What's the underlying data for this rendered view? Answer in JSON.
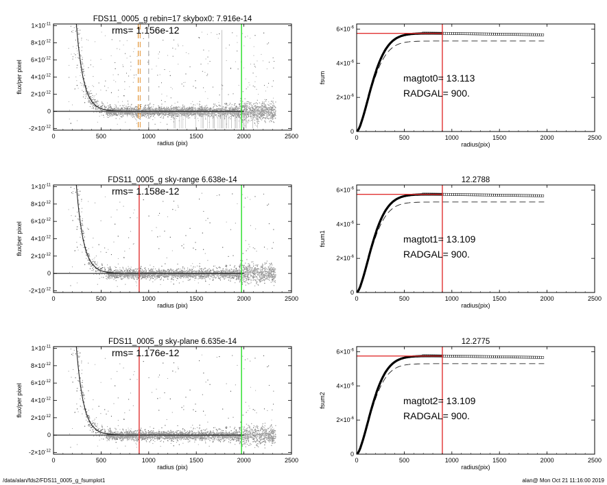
{
  "footer": {
    "path": "/data/alan/fds2/FDS11_0005_g_fsumplot1",
    "stamp": "alan@  Mon Oct 21 11:16:00 2019"
  },
  "colors": {
    "scatter": "#a0a0a0",
    "sky_marker": "#e03030",
    "radgal_marker": "#e03030",
    "edge_marker": "#22dd22",
    "aperture_marker": "#e08820"
  },
  "chart_data": [
    {
      "type": "scatter",
      "title": "FDS11_0005_g rebin=17    skybox0:  7.916e-14",
      "annotation": "rms= 1.156e-12",
      "xlabel": "radius (pix)",
      "ylabel": "flux/per pixel",
      "xlim": [
        0,
        2500
      ],
      "ylim": [
        -2.2e-12,
        1.02e-11
      ],
      "xticks": [
        0,
        500,
        1000,
        1500,
        2000,
        2500
      ],
      "yticks": [
        {
          "value": 1e-11,
          "label": "1×10",
          "exp": "-11"
        },
        {
          "value": 8e-12,
          "label": "8×10",
          "exp": "-12"
        },
        {
          "value": 6e-12,
          "label": "6×10",
          "exp": "-12"
        },
        {
          "value": 4e-12,
          "label": "4×10",
          "exp": "-12"
        },
        {
          "value": 2e-12,
          "label": "2×10",
          "exp": "-12"
        },
        {
          "value": 0,
          "label": "0",
          "exp": ""
        },
        {
          "value": -2e-12,
          "label": "-2×10",
          "exp": "-12"
        }
      ],
      "profile_scale": 2.5e-10,
      "profile_length": 75,
      "vlines": [
        {
          "x": 890,
          "color": "aperture",
          "dash": true
        },
        {
          "x": 910,
          "color": "aperture",
          "dash": true
        },
        {
          "x": 1000,
          "color": "gray",
          "dash": true
        },
        {
          "x": 1975,
          "color": "edge",
          "dash": false
        }
      ],
      "mask_spikes": true
    },
    {
      "type": "line",
      "title": "",
      "annotations": [
        "magtot0=  13.113",
        "RADGAL=    900."
      ],
      "xlabel": "radius(pix)",
      "ylabel": "fsum",
      "xlim": [
        0,
        2500
      ],
      "ylim": [
        0,
        6.3e-06
      ],
      "xticks": [
        0,
        500,
        1000,
        1500,
        2000,
        2500
      ],
      "yticks": [
        {
          "value": 0,
          "label": "0",
          "exp": ""
        },
        {
          "value": 2e-06,
          "label": "2×10",
          "exp": "-6"
        },
        {
          "value": 4e-06,
          "label": "4×10",
          "exp": "-6"
        },
        {
          "value": 6e-06,
          "label": "6×10",
          "exp": "-6"
        }
      ],
      "asymptote": 5.75e-06,
      "dashed_asymptote": 5.3e-06,
      "radgal": 900,
      "xmax_data": 1975
    },
    {
      "type": "scatter",
      "title": "FDS11_0005_g sky-range  6.638e-14",
      "annotation": "rms= 1.158e-12",
      "xlabel": "radius (pix)",
      "ylabel": "flux/per pixel",
      "xlim": [
        0,
        2500
      ],
      "ylim": [
        -2.2e-12,
        1.02e-11
      ],
      "xticks": [
        0,
        500,
        1000,
        1500,
        2000,
        2500
      ],
      "yticks": [
        {
          "value": 1e-11,
          "label": "1×10",
          "exp": "-11"
        },
        {
          "value": 8e-12,
          "label": "8×10",
          "exp": "-12"
        },
        {
          "value": 6e-12,
          "label": "6×10",
          "exp": "-12"
        },
        {
          "value": 4e-12,
          "label": "4×10",
          "exp": "-12"
        },
        {
          "value": 2e-12,
          "label": "2×10",
          "exp": "-12"
        },
        {
          "value": 0,
          "label": "0",
          "exp": ""
        },
        {
          "value": -2e-12,
          "label": "-2×10",
          "exp": "-12"
        }
      ],
      "profile_scale": 2.5e-10,
      "profile_length": 75,
      "vlines": [
        {
          "x": 900,
          "color": "sky",
          "dash": false
        },
        {
          "x": 1975,
          "color": "edge",
          "dash": false
        }
      ],
      "mask_spikes": false
    },
    {
      "type": "line",
      "title": "12.2788",
      "annotations": [
        "magtot1=  13.109",
        "RADGAL=    900."
      ],
      "xlabel": "radius(pix)",
      "ylabel": "fsum1",
      "xlim": [
        0,
        2500
      ],
      "ylim": [
        0,
        6.3e-06
      ],
      "xticks": [
        0,
        500,
        1000,
        1500,
        2000,
        2500
      ],
      "yticks": [
        {
          "value": 0,
          "label": "0",
          "exp": ""
        },
        {
          "value": 2e-06,
          "label": "2×10",
          "exp": "-6"
        },
        {
          "value": 4e-06,
          "label": "4×10",
          "exp": "-6"
        },
        {
          "value": 6e-06,
          "label": "6×10",
          "exp": "-6"
        }
      ],
      "asymptote": 5.75e-06,
      "dashed_asymptote": 5.3e-06,
      "radgal": 900,
      "xmax_data": 1975
    },
    {
      "type": "scatter",
      "title": "FDS11_0005_g sky-plane  6.635e-14",
      "annotation": "rms= 1.176e-12",
      "xlabel": "radius (pix)",
      "ylabel": "flux/per pixel",
      "xlim": [
        0,
        2500
      ],
      "ylim": [
        -2.2e-12,
        1.02e-11
      ],
      "xticks": [
        0,
        500,
        1000,
        1500,
        2000,
        2500
      ],
      "yticks": [
        {
          "value": 1e-11,
          "label": "1×10",
          "exp": "-11"
        },
        {
          "value": 8e-12,
          "label": "8×10",
          "exp": "-12"
        },
        {
          "value": 6e-12,
          "label": "6×10",
          "exp": "-12"
        },
        {
          "value": 4e-12,
          "label": "4×10",
          "exp": "-12"
        },
        {
          "value": 2e-12,
          "label": "2×10",
          "exp": "-12"
        },
        {
          "value": 0,
          "label": "0",
          "exp": ""
        },
        {
          "value": -2e-12,
          "label": "-2×10",
          "exp": "-12"
        }
      ],
      "profile_scale": 2.5e-10,
      "profile_length": 75,
      "vlines": [
        {
          "x": 900,
          "color": "sky",
          "dash": false
        },
        {
          "x": 1975,
          "color": "edge",
          "dash": false
        }
      ],
      "mask_spikes": false
    },
    {
      "type": "line",
      "title": "12.2775",
      "annotations": [
        "magtot2=  13.109",
        "RADGAL=    900."
      ],
      "xlabel": "radius(pix)",
      "ylabel": "fsum2",
      "xlim": [
        0,
        2500
      ],
      "ylim": [
        0,
        6.3e-06
      ],
      "xticks": [
        0,
        500,
        1000,
        1500,
        2000,
        2500
      ],
      "yticks": [
        {
          "value": 0,
          "label": "0",
          "exp": ""
        },
        {
          "value": 2e-06,
          "label": "2×10",
          "exp": "-6"
        },
        {
          "value": 4e-06,
          "label": "4×10",
          "exp": "-6"
        },
        {
          "value": 6e-06,
          "label": "6×10",
          "exp": "-6"
        }
      ],
      "asymptote": 5.75e-06,
      "dashed_asymptote": 5.3e-06,
      "radgal": 900,
      "xmax_data": 1975
    }
  ]
}
